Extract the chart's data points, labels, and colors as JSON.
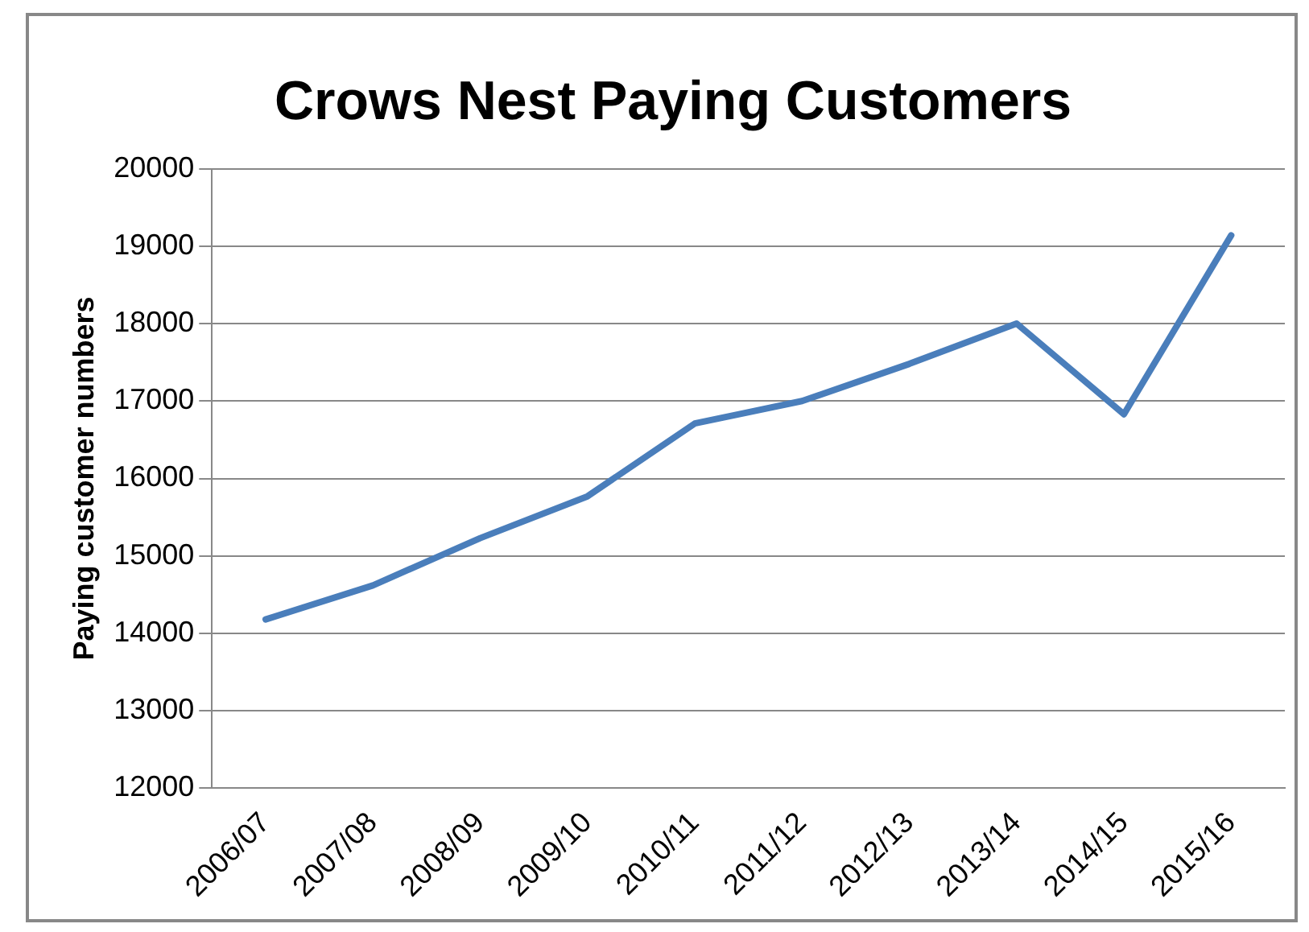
{
  "chart_data": {
    "type": "line",
    "title": "Crows Nest Paying Customers",
    "ylabel": "Paying customer numbers",
    "categories": [
      "2006/07",
      "2007/08",
      "2008/09",
      "2009/10",
      "2010/11",
      "2011/12",
      "2012/13",
      "2013/14",
      "2014/15",
      "2015/16"
    ],
    "series": [
      {
        "color": "#4a7ebb",
        "values": [
          14180,
          14620,
          15230,
          15770,
          16710,
          17000,
          17480,
          18000,
          16830,
          19140
        ]
      }
    ],
    "ylim": [
      12000,
      20000
    ],
    "yticks": [
      12000,
      13000,
      14000,
      15000,
      16000,
      17000,
      18000,
      19000,
      20000
    ],
    "grid": "y",
    "legend": false,
    "marker": "none",
    "line_style": "solid"
  }
}
